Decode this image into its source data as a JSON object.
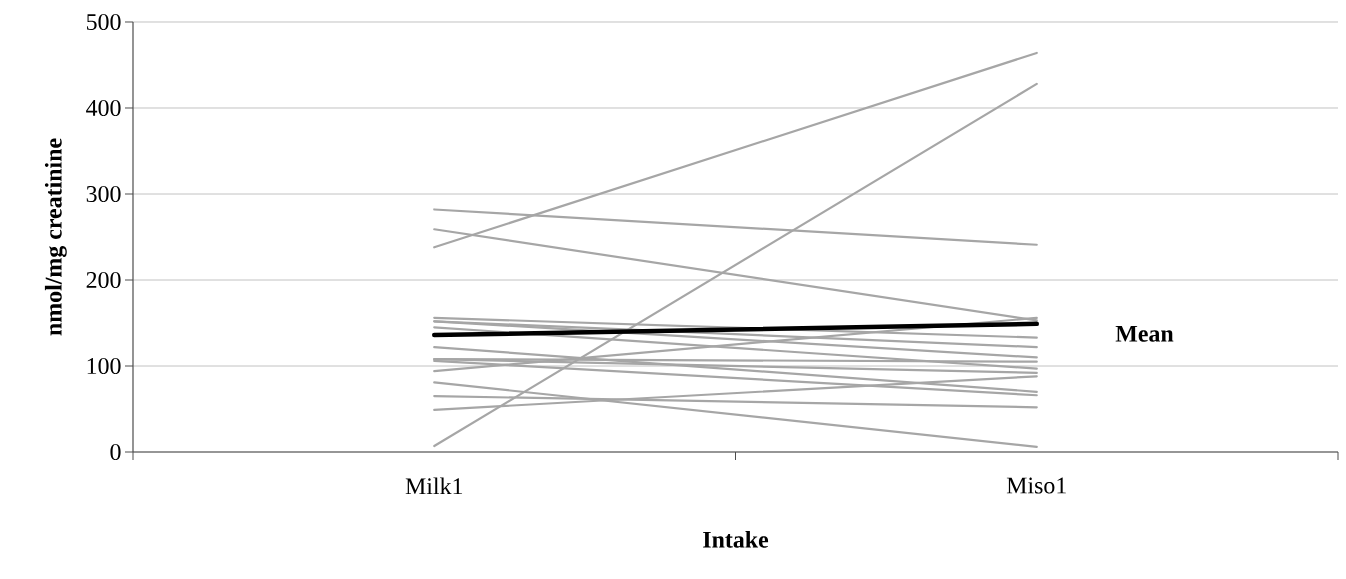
{
  "chart_data": {
    "type": "line",
    "xlabel": "Intake",
    "ylabel": "nmol/mg creatinine",
    "categories": [
      "Milk1",
      "Miso1"
    ],
    "series": [
      {
        "color": "#a6a6a6",
        "values": [
          238,
          464
        ]
      },
      {
        "color": "#a6a6a6",
        "values": [
          7,
          428
        ]
      },
      {
        "color": "#a6a6a6",
        "values": [
          282,
          241
        ]
      },
      {
        "color": "#a6a6a6",
        "values": [
          259,
          153
        ]
      },
      {
        "color": "#a6a6a6",
        "values": [
          94,
          156
        ]
      },
      {
        "color": "#a6a6a6",
        "values": [
          156,
          133
        ]
      },
      {
        "color": "#a6a6a6",
        "values": [
          152,
          110
        ]
      },
      {
        "color": "#a6a6a6",
        "values": [
          152,
          122
        ]
      },
      {
        "color": "#a6a6a6",
        "values": [
          145,
          97
        ]
      },
      {
        "color": "#a6a6a6",
        "values": [
          122,
          70
        ]
      },
      {
        "color": "#a6a6a6",
        "values": [
          108,
          105
        ]
      },
      {
        "color": "#a6a6a6",
        "values": [
          108,
          92
        ]
      },
      {
        "color": "#a6a6a6",
        "values": [
          106,
          66
        ]
      },
      {
        "color": "#a6a6a6",
        "values": [
          81,
          6
        ]
      },
      {
        "color": "#a6a6a6",
        "values": [
          65,
          52
        ]
      },
      {
        "color": "#a6a6a6",
        "values": [
          49,
          88
        ]
      },
      {
        "name": "Mean",
        "color": "#000000",
        "values": [
          136,
          149
        ]
      }
    ],
    "ylim": [
      0,
      500
    ],
    "yticks": [
      0,
      100,
      200,
      300,
      400,
      500
    ],
    "grid": "y",
    "legend": false,
    "marker": "none",
    "line_style": "solid"
  }
}
